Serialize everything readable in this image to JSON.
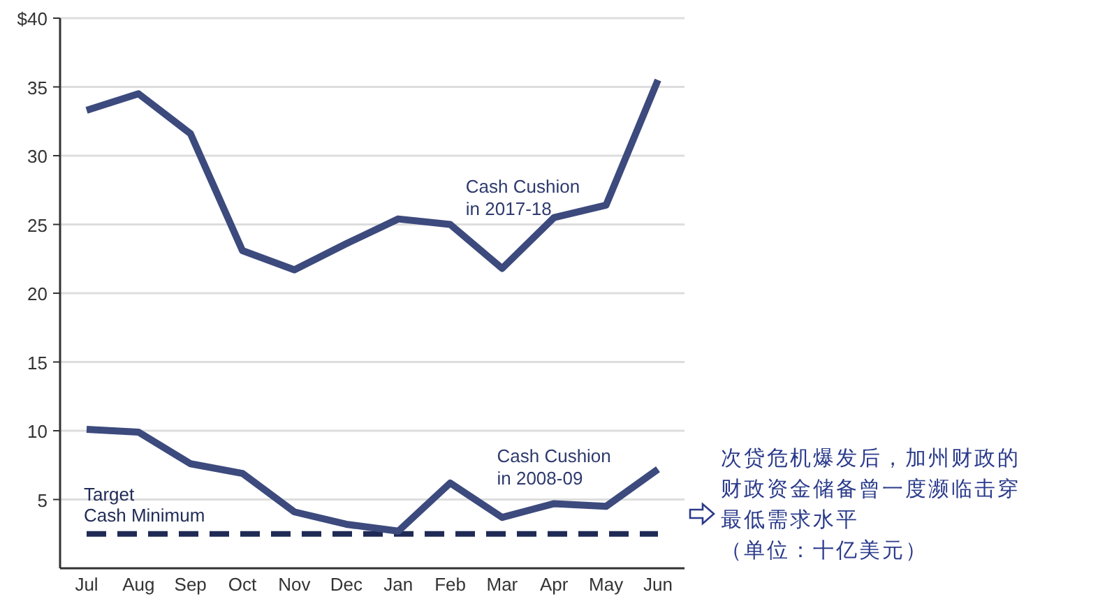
{
  "chart_data": {
    "type": "line",
    "categories": [
      "Jul",
      "Aug",
      "Sep",
      "Oct",
      "Nov",
      "Dec",
      "Jan",
      "Feb",
      "Mar",
      "Apr",
      "May",
      "Jun"
    ],
    "series": [
      {
        "name": "Cash Cushion\nin 2017-18",
        "color": "#3c4a7d",
        "values": [
          33.3,
          34.5,
          31.6,
          23.1,
          21.7,
          23.6,
          25.4,
          25.0,
          21.8,
          25.5,
          26.4,
          35.5
        ]
      },
      {
        "name": "Cash Cushion\nin 2008-09",
        "color": "#3c4a7d",
        "values": [
          10.1,
          9.9,
          7.6,
          6.9,
          4.1,
          3.2,
          2.7,
          6.2,
          3.7,
          4.7,
          4.5,
          7.2
        ]
      }
    ],
    "ylim": [
      0,
      40
    ],
    "yticks": [
      {
        "value": 5,
        "label": "5"
      },
      10,
      15,
      20,
      25,
      30,
      35,
      {
        "value": 40,
        "label": "$40"
      }
    ],
    "grid": "y",
    "marker": "none",
    "line_style": "solid",
    "ref_lines": [
      {
        "axis": "y",
        "value": 2.5,
        "label": "Target\nCash Minimum",
        "color": "#1f2a55",
        "line_style": "dashed"
      }
    ],
    "annotations": [
      "次贷危机爆发后，加州财政的财政资金储备曾一度濒临击穿最低需求水平",
      "（单位：十亿美元）"
    ]
  }
}
